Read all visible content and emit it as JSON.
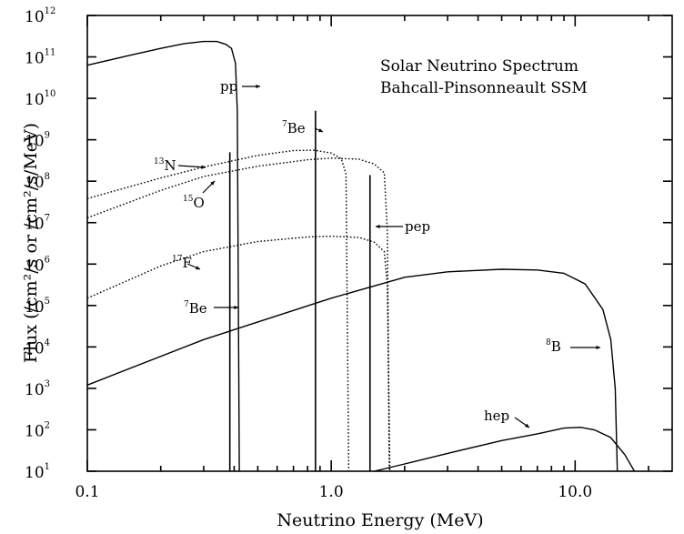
{
  "chart_data": {
    "type": "line",
    "title": "Solar Neutrino Spectrum",
    "subtitle": "Bahcall-Pinsonneault SSM",
    "xlabel": "Neutrino Energy (MeV)",
    "ylabel": "Flux (/cm²/s or /cm²/s/MeV)",
    "x_scale": "log",
    "y_scale": "log",
    "xlim": [
      0.1,
      25
    ],
    "ylim": [
      10,
      1000000000000
    ],
    "grid": false,
    "x_ticks": [
      {
        "value": 0.1,
        "label": "0.1"
      },
      {
        "value": 1.0,
        "label": "1.0"
      },
      {
        "value": 10.0,
        "label": "10.0"
      }
    ],
    "y_ticks": [
      {
        "exp": 1,
        "base": "10",
        "sup": "1"
      },
      {
        "exp": 2,
        "base": "10",
        "sup": "2"
      },
      {
        "exp": 3,
        "base": "10",
        "sup": "3"
      },
      {
        "exp": 4,
        "base": "10",
        "sup": "4"
      },
      {
        "exp": 5,
        "base": "10",
        "sup": "5"
      },
      {
        "exp": 6,
        "base": "10",
        "sup": "6"
      },
      {
        "exp": 7,
        "base": "10",
        "sup": "7"
      },
      {
        "exp": 8,
        "base": "10",
        "sup": "8"
      },
      {
        "exp": 9,
        "base": "10",
        "sup": "9"
      },
      {
        "exp": 10,
        "base": "10",
        "sup": "10"
      },
      {
        "exp": 11,
        "base": "10",
        "sup": "11"
      },
      {
        "exp": 12,
        "base": "10",
        "sup": "12"
      }
    ],
    "series": [
      {
        "label": "pp",
        "style": "solid",
        "points": [
          [
            0.1,
            63000000000.0
          ],
          [
            0.15,
            110000000000.0
          ],
          [
            0.2,
            160000000000.0
          ],
          [
            0.25,
            210000000000.0
          ],
          [
            0.3,
            235000000000.0
          ],
          [
            0.34,
            235000000000.0
          ],
          [
            0.37,
            200000000000.0
          ],
          [
            0.39,
            160000000000.0
          ],
          [
            0.405,
            70000000000.0
          ],
          [
            0.412,
            5000000000.0
          ],
          [
            0.42,
            10
          ]
        ]
      },
      {
        "label": "13N",
        "style": "dotted",
        "points": [
          [
            0.1,
            38000000.0
          ],
          [
            0.2,
            120000000.0
          ],
          [
            0.3,
            220000000.0
          ],
          [
            0.5,
            420000000.0
          ],
          [
            0.7,
            550000000.0
          ],
          [
            0.85,
            560000000.0
          ],
          [
            1.0,
            480000000.0
          ],
          [
            1.1,
            350000000.0
          ],
          [
            1.15,
            150000000.0
          ],
          [
            1.18,
            10
          ]
        ]
      },
      {
        "label": "15O",
        "style": "dotted",
        "points": [
          [
            0.1,
            13000000.0
          ],
          [
            0.2,
            60000000.0
          ],
          [
            0.3,
            130000000.0
          ],
          [
            0.5,
            230000000.0
          ],
          [
            0.8,
            330000000.0
          ],
          [
            1.0,
            360000000.0
          ],
          [
            1.3,
            340000000.0
          ],
          [
            1.5,
            260000000.0
          ],
          [
            1.65,
            160000000.0
          ],
          [
            1.7,
            6000000.0
          ],
          [
            1.73,
            10
          ]
        ]
      },
      {
        "label": "17F",
        "style": "dotted",
        "points": [
          [
            0.1,
            150000.0
          ],
          [
            0.2,
            900000.0
          ],
          [
            0.3,
            2000000.0
          ],
          [
            0.5,
            3500000.0
          ],
          [
            0.8,
            4500000.0
          ],
          [
            1.0,
            4700000.0
          ],
          [
            1.3,
            4400000.0
          ],
          [
            1.5,
            3400000.0
          ],
          [
            1.65,
            2000000.0
          ],
          [
            1.7,
            300000.0
          ],
          [
            1.74,
            10
          ]
        ]
      },
      {
        "label": "8B",
        "style": "solid",
        "points": [
          [
            0.1,
            1200.0
          ],
          [
            0.3,
            15000.0
          ],
          [
            1.0,
            150000.0
          ],
          [
            2.0,
            480000.0
          ],
          [
            3.0,
            650000.0
          ],
          [
            5.0,
            750000.0
          ],
          [
            7.0,
            720000.0
          ],
          [
            9.0,
            600000.0
          ],
          [
            11.0,
            330000.0
          ],
          [
            13.0,
            80000.0
          ],
          [
            14.0,
            15000.0
          ],
          [
            14.6,
            1000.0
          ],
          [
            14.9,
            10
          ]
        ]
      },
      {
        "label": "hep",
        "style": "solid",
        "points": [
          [
            1.5,
            10
          ],
          [
            2.0,
            15
          ],
          [
            3.0,
            27
          ],
          [
            5.0,
            55
          ],
          [
            7.0,
            80
          ],
          [
            9.0,
            110
          ],
          [
            10.5,
            115
          ],
          [
            12.0,
            100
          ],
          [
            14.0,
            65
          ],
          [
            16.0,
            25
          ],
          [
            17.5,
            10
          ]
        ]
      }
    ],
    "lines": [
      {
        "label": "7Be",
        "energy": 0.384,
        "flux": 500000000.0
      },
      {
        "label": "7Be",
        "energy": 0.862,
        "flux": 5000000000.0
      },
      {
        "label": "pep",
        "energy": 1.442,
        "flux": 140000000.0
      }
    ],
    "annotations": [
      {
        "id": "pp",
        "text": "pp",
        "sup": ""
      },
      {
        "id": "be7-high",
        "text": "Be",
        "sup": "7"
      },
      {
        "id": "n13",
        "text": "N",
        "sup": "13"
      },
      {
        "id": "o15",
        "text": "O",
        "sup": "15"
      },
      {
        "id": "pep",
        "text": "pep",
        "sup": ""
      },
      {
        "id": "f17",
        "text": "F",
        "sup": "17"
      },
      {
        "id": "be7-low",
        "text": "Be",
        "sup": "7"
      },
      {
        "id": "b8",
        "text": "B",
        "sup": "8"
      },
      {
        "id": "hep",
        "text": "hep",
        "sup": ""
      }
    ]
  }
}
